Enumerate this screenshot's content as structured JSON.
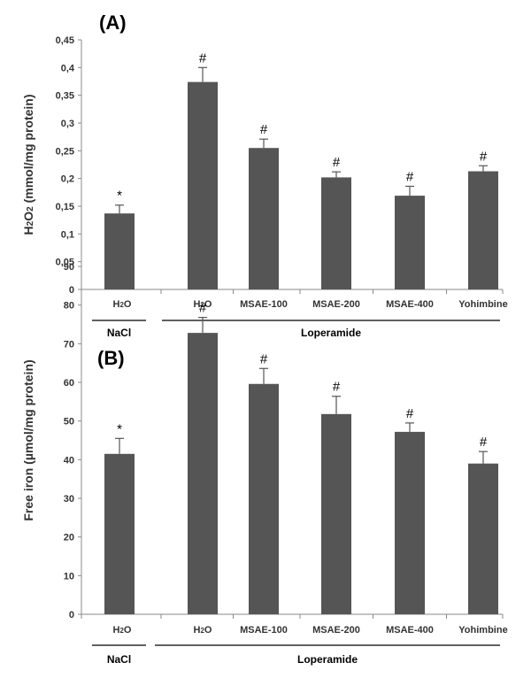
{
  "colors": {
    "bar": "#555555",
    "axis": "#8a8a8a",
    "text": "#333333"
  },
  "chart_data": [
    {
      "type": "bar",
      "panel": "(A)",
      "ylabel": "H2O2 (mmol/mg protein)",
      "ylim": [
        0,
        0.45
      ],
      "yticks": [
        "0",
        "0,05",
        "0,1",
        "0,15",
        "0,2",
        "0,25",
        "0,3",
        "0,35",
        "0,4",
        "0,45"
      ],
      "categories": [
        "H2O",
        "H2O",
        "MSAE-100",
        "MSAE-200",
        "MSAE-400",
        "Yohimbine"
      ],
      "values": [
        0.137,
        0.374,
        0.255,
        0.202,
        0.169,
        0.213
      ],
      "errors": [
        0.015,
        0.026,
        0.016,
        0.01,
        0.017,
        0.01
      ],
      "annotations": [
        "*",
        "#",
        "#",
        "#",
        "#",
        "#"
      ],
      "groups": [
        {
          "label": "NaCl",
          "members": [
            0
          ]
        },
        {
          "label": "Loperamide",
          "members": [
            1,
            2,
            3,
            4,
            5
          ]
        }
      ]
    },
    {
      "type": "bar",
      "panel": "(B)",
      "ylabel": "Free iron (µmol/mg protein)",
      "ylim": [
        0,
        90
      ],
      "yticks": [
        "0",
        "10",
        "20",
        "30",
        "40",
        "50",
        "60",
        "70",
        "80",
        "90"
      ],
      "categories": [
        "H2O",
        "H2O",
        "MSAE-100",
        "MSAE-200",
        "MSAE-400",
        "Yohimbine"
      ],
      "values": [
        41.5,
        72.8,
        59.6,
        51.8,
        47.2,
        39.0
      ],
      "errors": [
        4.0,
        4.0,
        4.0,
        4.6,
        2.3,
        3.1
      ],
      "annotations": [
        "*",
        "#",
        "#",
        "#",
        "#",
        "#"
      ],
      "groups": [
        {
          "label": "NaCl",
          "members": [
            0
          ]
        },
        {
          "label": "Loperamide",
          "members": [
            1,
            2,
            3,
            4,
            5
          ]
        }
      ]
    }
  ]
}
